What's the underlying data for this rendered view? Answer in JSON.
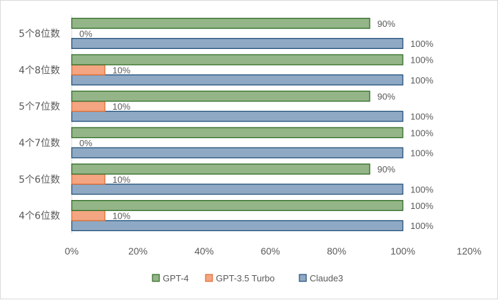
{
  "chart_data": {
    "type": "bar",
    "orientation": "horizontal",
    "categories": [
      "4个6位数",
      "5个6位数",
      "4个7位数",
      "5个7位数",
      "4个8位数",
      "5个8位数"
    ],
    "series": [
      {
        "name": "Claude3",
        "values": [
          100,
          100,
          100,
          100,
          100,
          100
        ],
        "color": "#8fa9c4",
        "stroke": "#1f4e79"
      },
      {
        "name": "GPT-3.5 Turbo",
        "values": [
          10,
          10,
          0,
          10,
          10,
          0
        ],
        "color": "#f4a582",
        "stroke": "#e46c2e"
      },
      {
        "name": "GPT-4",
        "values": [
          100,
          90,
          100,
          90,
          100,
          90
        ],
        "color": "#93b587",
        "stroke": "#2e6b23"
      }
    ],
    "xlim": [
      0,
      120
    ],
    "x_ticks": [
      "0%",
      "20%",
      "40%",
      "60%",
      "80%",
      "100%",
      "120%"
    ],
    "value_suffix": "%",
    "legend_position": "bottom",
    "legend_order": [
      "GPT-4",
      "GPT-3.5 Turbo",
      "Claude3"
    ],
    "grid": false
  }
}
